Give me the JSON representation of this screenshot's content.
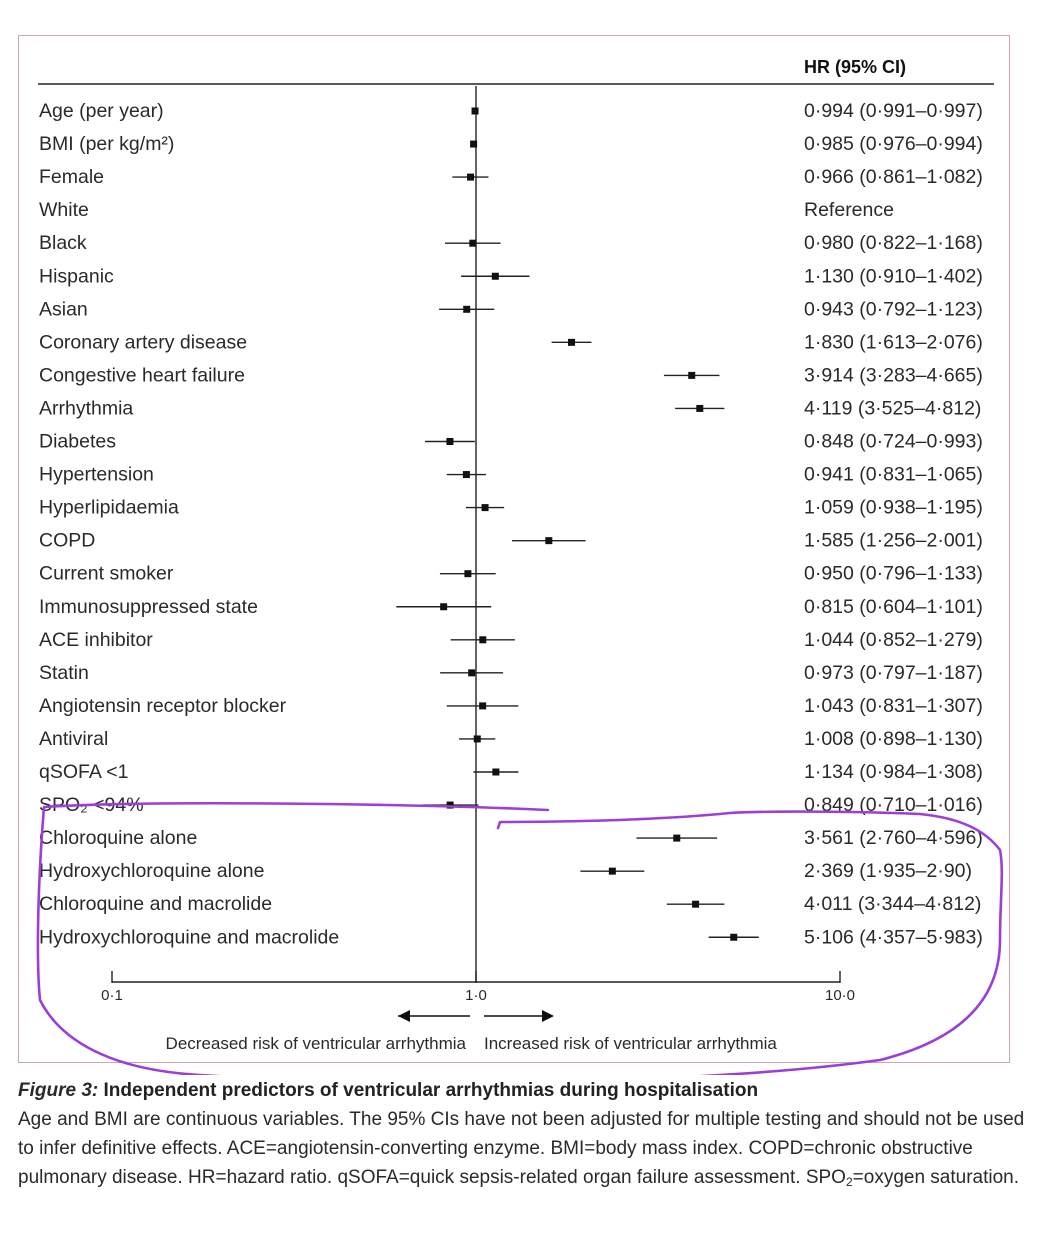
{
  "chart_data": {
    "type": "forest",
    "header": "HR (95% CI)",
    "x_scale": "log",
    "xlim": [
      0.1,
      10.0
    ],
    "x_reference": 1.0,
    "x_ticks": [
      {
        "value": 0.1,
        "label": "0·1"
      },
      {
        "value": 1.0,
        "label": "1·0"
      },
      {
        "value": 10.0,
        "label": "10·0"
      }
    ],
    "left_arrow_label": "Decreased risk of ventricular arrhythmia",
    "right_arrow_label": "Increased risk of ventricular arrhythmia",
    "rows": [
      {
        "label": "Age (per year)",
        "hr": 0.994,
        "lo": 0.991,
        "hi": 0.997,
        "text": "0·994 (0·991–0·997)"
      },
      {
        "label": "BMI (per kg/m²)",
        "hr": 0.985,
        "lo": 0.976,
        "hi": 0.994,
        "text": "0·985 (0·976–0·994)"
      },
      {
        "label": "Female",
        "hr": 0.966,
        "lo": 0.861,
        "hi": 1.082,
        "text": "0·966 (0·861–1·082)"
      },
      {
        "label": "White",
        "hr": null,
        "lo": null,
        "hi": null,
        "text": "Reference"
      },
      {
        "label": "Black",
        "hr": 0.98,
        "lo": 0.822,
        "hi": 1.168,
        "text": "0·980 (0·822–1·168)"
      },
      {
        "label": "Hispanic",
        "hr": 1.13,
        "lo": 0.91,
        "hi": 1.402,
        "text": "1·130 (0·910–1·402)"
      },
      {
        "label": "Asian",
        "hr": 0.943,
        "lo": 0.792,
        "hi": 1.123,
        "text": "0·943 (0·792–1·123)"
      },
      {
        "label": "Coronary artery disease",
        "hr": 1.83,
        "lo": 1.613,
        "hi": 2.076,
        "text": "1·830 (1·613–2·076)"
      },
      {
        "label": "Congestive heart failure",
        "hr": 3.914,
        "lo": 3.283,
        "hi": 4.665,
        "text": "3·914 (3·283–4·665)"
      },
      {
        "label": "Arrhythmia",
        "hr": 4.119,
        "lo": 3.525,
        "hi": 4.812,
        "text": "4·119 (3·525–4·812)"
      },
      {
        "label": "Diabetes",
        "hr": 0.848,
        "lo": 0.724,
        "hi": 0.993,
        "text": "0·848 (0·724–0·993)"
      },
      {
        "label": "Hypertension",
        "hr": 0.941,
        "lo": 0.831,
        "hi": 1.065,
        "text": "0·941 (0·831–1·065)"
      },
      {
        "label": "Hyperlipidaemia",
        "hr": 1.059,
        "lo": 0.938,
        "hi": 1.195,
        "text": "1·059 (0·938–1·195)"
      },
      {
        "label": "COPD",
        "hr": 1.585,
        "lo": 1.256,
        "hi": 2.001,
        "text": "1·585 (1·256–2·001)"
      },
      {
        "label": "Current smoker",
        "hr": 0.95,
        "lo": 0.796,
        "hi": 1.133,
        "text": "0·950 (0·796–1·133)"
      },
      {
        "label": "Immunosuppressed state",
        "hr": 0.815,
        "lo": 0.604,
        "hi": 1.101,
        "text": "0·815 (0·604–1·101)"
      },
      {
        "label": "ACE inhibitor",
        "hr": 1.044,
        "lo": 0.852,
        "hi": 1.279,
        "text": "1·044 (0·852–1·279)"
      },
      {
        "label": "Statin",
        "hr": 0.973,
        "lo": 0.797,
        "hi": 1.187,
        "text": "0·973 (0·797–1·187)"
      },
      {
        "label": "Angiotensin receptor blocker",
        "hr": 1.043,
        "lo": 0.831,
        "hi": 1.307,
        "text": "1·043 (0·831–1·307)"
      },
      {
        "label": "Antiviral",
        "hr": 1.008,
        "lo": 0.898,
        "hi": 1.13,
        "text": "1·008 (0·898–1·130)"
      },
      {
        "label": "qSOFA <1",
        "hr": 1.134,
        "lo": 0.984,
        "hi": 1.308,
        "text": "1·134 (0·984–1·308)"
      },
      {
        "label": "SPO₂ <94%",
        "hr": 0.849,
        "lo": 0.71,
        "hi": 1.016,
        "text": "0·849 (0·710–1·016)"
      },
      {
        "label": "Chloroquine alone",
        "hr": 3.561,
        "lo": 2.76,
        "hi": 4.596,
        "text": "3·561 (2·760–4·596)"
      },
      {
        "label": "Hydroxychloroquine alone",
        "hr": 2.369,
        "lo": 1.935,
        "hi": 2.9,
        "text": "2·369 (1·935–2·90)"
      },
      {
        "label": "Chloroquine and macrolide",
        "hr": 4.011,
        "lo": 3.344,
        "hi": 4.812,
        "text": "4·011 (3·344–4·812)"
      },
      {
        "label": "Hydroxychloroquine and macrolide",
        "hr": 5.106,
        "lo": 4.357,
        "hi": 5.983,
        "text": "5·106 (4·357–5·983)"
      }
    ]
  },
  "annotation": {
    "color": "#9b3fd6"
  },
  "caption": {
    "label": "Figure 3:",
    "title": " Independent predictors of ventricular arrhythmias during hospitalisation",
    "body_1": "Age and BMI are continuous variables. The 95% CIs have not been adjusted for multiple testing and should not be used to infer definitive effects. ACE=angiotensin-converting enzyme. BMI=body mass index. COPD=chronic obstructive pulmonary disease. HR=hazard ratio. qSOFA=quick sepsis-related organ failure assessment. SPO",
    "body_sub": "2",
    "body_2": "=oxygen saturation."
  }
}
